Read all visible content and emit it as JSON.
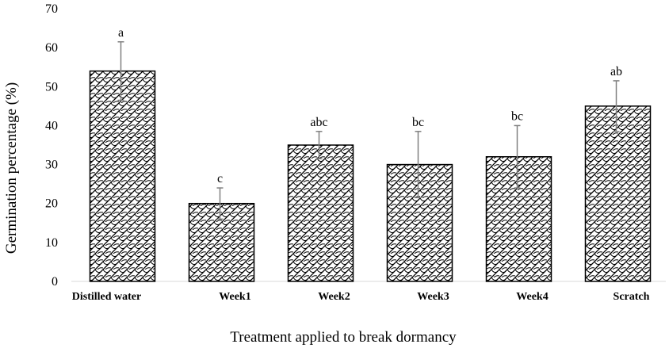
{
  "chart_data": {
    "type": "bar",
    "title": "",
    "xlabel": "Treatment applied to break dormancy",
    "ylabel": "Germination percentage (%)",
    "ylim": [
      0,
      70
    ],
    "yticks": [
      "0",
      "10",
      "20",
      "30",
      "40",
      "50",
      "60",
      "70"
    ],
    "categories": [
      "Distilled water",
      "Week1",
      "Week2",
      "Week3",
      "Week4",
      "Scratch"
    ],
    "values": [
      54,
      20,
      35,
      30,
      32,
      45
    ],
    "error_upper": [
      61.5,
      24,
      38.5,
      38.5,
      40,
      51.5
    ],
    "error_lower": [
      46.5,
      16,
      31.5,
      21.5,
      24,
      38.5
    ],
    "significance_letters": [
      "a",
      "c",
      "abc",
      "bc",
      "bc",
      "ab"
    ],
    "grid": false,
    "legend": "none",
    "bar_pattern": "crosshatch-swirl",
    "colors": {
      "bar_fill": "#ffffff",
      "bar_stroke": "#000000",
      "pattern": "#000000",
      "error_bar": "#808080",
      "axis": "#d9d9d9"
    }
  }
}
